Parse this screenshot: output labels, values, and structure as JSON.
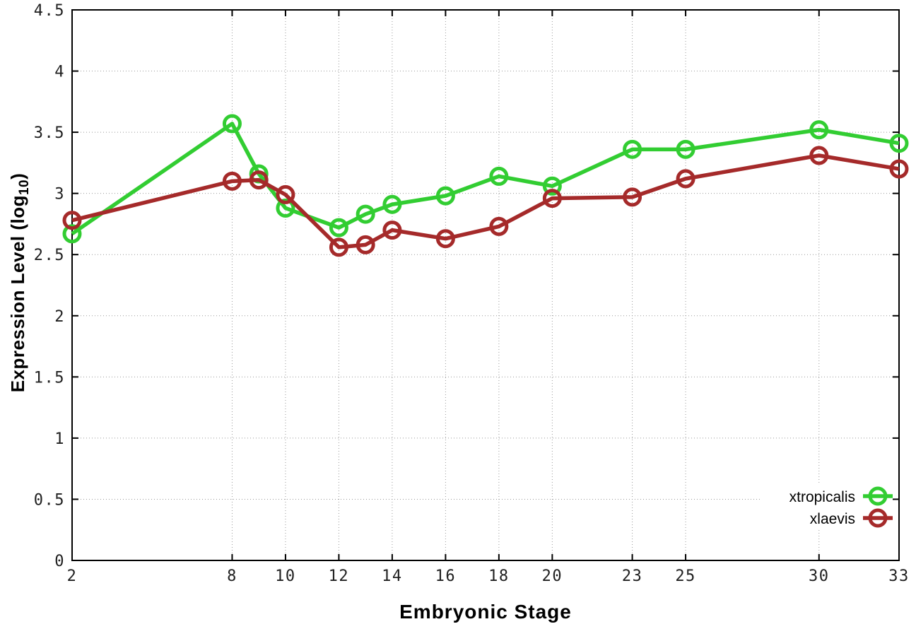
{
  "figure": {
    "background": "#ffffff",
    "border_color": "#000000",
    "grid_color": "#999999",
    "tick_label_color": "#202020"
  },
  "chart_data": {
    "type": "line",
    "title": "",
    "xlabel": "Embryonic Stage",
    "ylabel": "Expression Level (log10)",
    "ylabel_parts": {
      "pre": "Expression Level (log",
      "sub": "10",
      "post": ")"
    },
    "x": [
      2,
      8,
      9,
      10,
      12,
      13,
      14,
      16,
      18,
      20,
      23,
      25,
      30,
      33
    ],
    "x_ticks": [
      2,
      8,
      10,
      12,
      14,
      16,
      18,
      20,
      23,
      25,
      30,
      33
    ],
    "x_tick_labels": [
      "2",
      "8",
      "10",
      "12",
      "14",
      "16",
      "18",
      "20",
      "23",
      "25",
      "30",
      "33"
    ],
    "y_ticks": [
      0,
      0.5,
      1,
      1.5,
      2,
      2.5,
      3,
      3.5,
      4,
      4.5
    ],
    "y_tick_labels": [
      "0",
      "0.5",
      "1",
      "1.5",
      "2",
      "2.5",
      "3",
      "3.5",
      "4",
      "4.5"
    ],
    "xlim": [
      2,
      33
    ],
    "ylim": [
      0,
      4.5
    ],
    "grid": true,
    "marker": "open-circle",
    "legend_position": "bottom-right",
    "series": [
      {
        "name": "xtropicalis",
        "color": "#32CD32",
        "values": [
          2.67,
          3.57,
          3.16,
          2.88,
          2.72,
          2.83,
          2.91,
          2.98,
          3.14,
          3.06,
          3.36,
          3.36,
          3.52,
          3.41
        ]
      },
      {
        "name": "xlaevis",
        "color": "#A52A2A",
        "values": [
          2.78,
          3.1,
          3.11,
          2.99,
          2.56,
          2.58,
          2.7,
          2.63,
          2.73,
          2.96,
          2.97,
          3.12,
          3.31,
          3.2
        ]
      }
    ]
  }
}
